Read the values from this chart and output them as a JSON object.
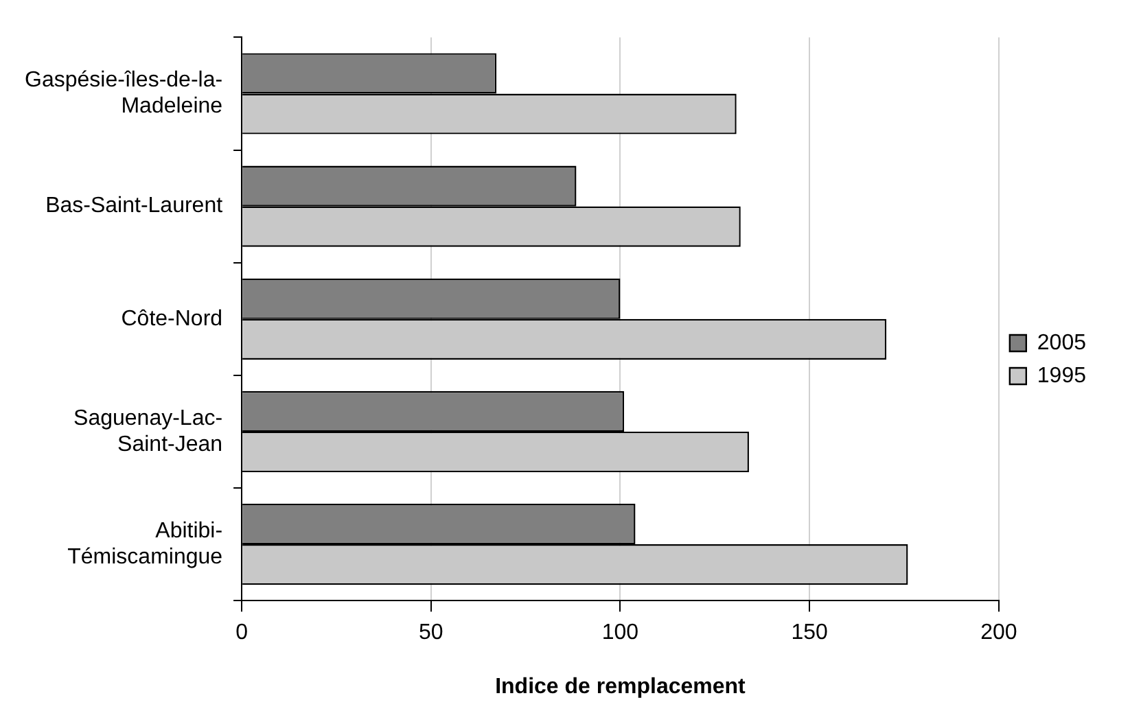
{
  "chart_data": {
    "type": "bar",
    "orientation": "horizontal",
    "xlabel": "Indice de remplacement",
    "categories": [
      "Gaspésie-îles-de-la-Madeleine",
      "Bas-Saint-Laurent",
      "Côte-Nord",
      "Saguenay-Lac-Saint-Jean",
      "Abitibi-Témiscamingue"
    ],
    "series": [
      {
        "name": "2005",
        "color": "#808080",
        "values": [
          67.3,
          88.4,
          100,
          101,
          104
        ]
      },
      {
        "name": "1995",
        "color": "#c8c8c8",
        "values": [
          130.7,
          131.8,
          170.3,
          134,
          176
        ]
      }
    ],
    "xlim": [
      0,
      200
    ],
    "xticks": [
      0,
      50,
      100,
      150,
      200
    ],
    "grid": "x",
    "legend": "right"
  }
}
